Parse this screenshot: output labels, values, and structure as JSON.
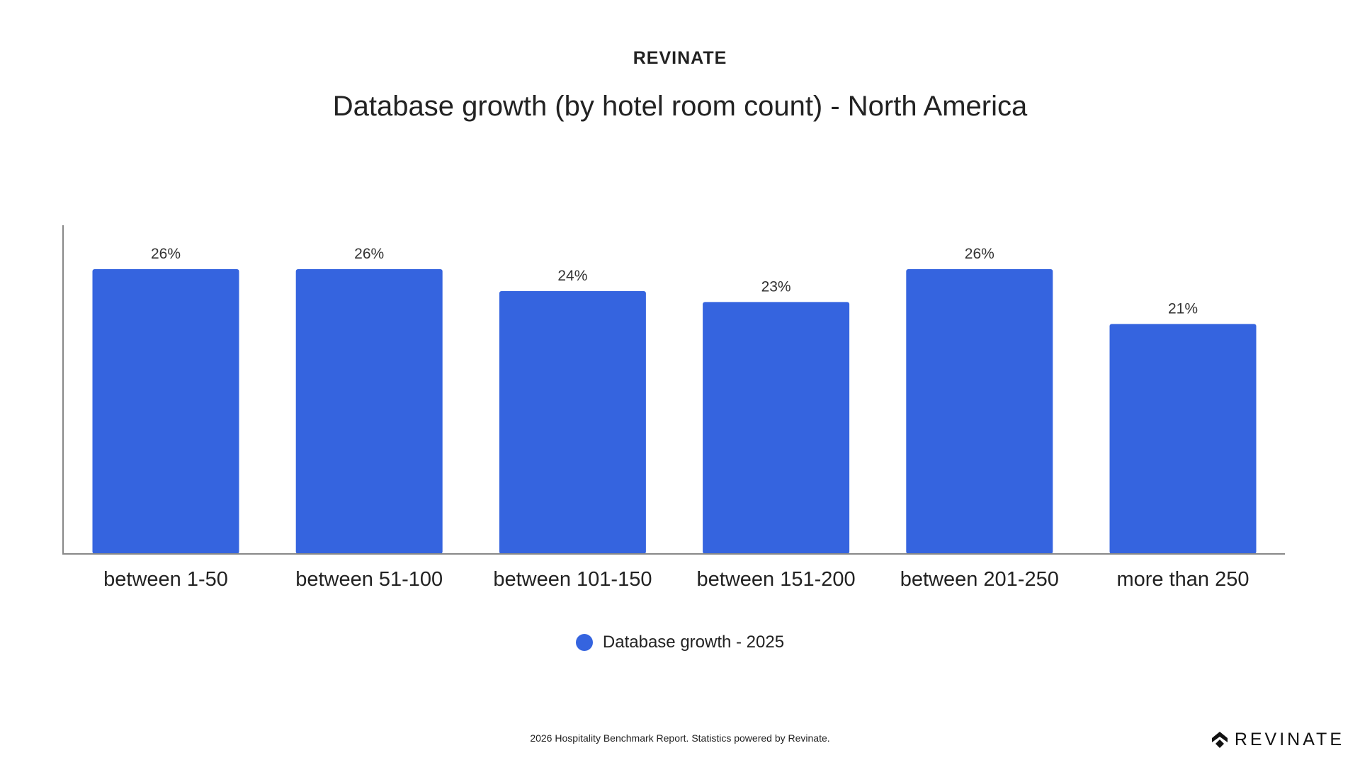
{
  "header": {
    "brand": "REVINATE"
  },
  "chart_data": {
    "type": "bar",
    "title": "Database growth (by hotel room count) - North America",
    "categories": [
      "between 1-50",
      "between 51-100",
      "between 101-150",
      "between 151-200",
      "between 201-250",
      "more than 250"
    ],
    "series": [
      {
        "name": "Database growth - 2025",
        "values": [
          26,
          26,
          24,
          23,
          26,
          21
        ],
        "color": "#3564df"
      }
    ],
    "value_labels": [
      "26%",
      "26%",
      "24%",
      "23%",
      "26%",
      "21%"
    ],
    "xlabel": "",
    "ylabel": "",
    "ylim": [
      0,
      30
    ],
    "grid": false,
    "legend_position": "bottom-center"
  },
  "footer": {
    "text": "2026 Hospitality Benchmark Report. Statistics powered by Revinate."
  },
  "logo": {
    "text": "REVINATE",
    "icon": "revinate-logo-icon"
  }
}
